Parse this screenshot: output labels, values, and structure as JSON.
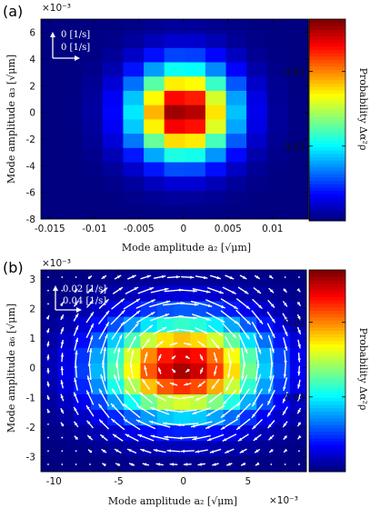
{
  "panel_a": {
    "label": "(a)",
    "exponent": "×10⁻³",
    "legend": [
      "0 [1/s]",
      "0 [1/s]"
    ],
    "colorbar_label": "Probability Δα²ρ",
    "chart_data": {
      "type": "heatmap",
      "xlabel": "Mode amplitude a₂ [√μm]",
      "ylabel": "Mode amplitude a₃ [√μm]",
      "colorbar_label": "Probability Δα²ρ",
      "xlim": [
        -0.016,
        0.014
      ],
      "ylim": [
        -8,
        7
      ],
      "y_scale_note": "×10⁻³",
      "x_ticks": [
        "-0.015",
        "-0.01",
        "-0.005",
        "0",
        "0.005",
        "0.01"
      ],
      "x_tick_values": [
        -0.015,
        -0.01,
        -0.005,
        0,
        0.005,
        0.01
      ],
      "y_ticks": [
        "-8",
        "-6",
        "-4",
        "-2",
        "0",
        "2",
        "4",
        "6"
      ],
      "y_tick_values": [
        -8,
        -6,
        -4,
        -2,
        0,
        2,
        4,
        6
      ],
      "colorbar_ticks": [
        "0.01",
        "0.02"
      ],
      "colorbar_tick_values": [
        0.01,
        0.02
      ],
      "colorbar_range": [
        0,
        0.027
      ],
      "nx": 13,
      "ny": 14,
      "sigma_x": 0.0039,
      "sigma_y": 2.4,
      "peak": 0.027,
      "x_center": 0,
      "y_center": 0
    }
  },
  "panel_b": {
    "label": "(b)",
    "exponent_y": "×10⁻³",
    "exponent_x": "×10⁻³",
    "legend": [
      "0.02 [1/s]",
      "0.04 [1/s]"
    ],
    "colorbar_label": "Probability Δα²ρ",
    "chart_data": {
      "type": "heatmap",
      "xlabel": "Mode amplitude a₂ [√μm]",
      "ylabel": "Mode amplitude a₆ [√μm]",
      "colorbar_label": "Probability Δα²ρ",
      "xlim": [
        -11,
        9.5
      ],
      "ylim": [
        -3.5,
        3.3
      ],
      "x_ticks": [
        "-10",
        "-5",
        "0",
        "5"
      ],
      "x_tick_values": [
        -10,
        -5,
        0,
        5
      ],
      "y_ticks": [
        "-3",
        "-2",
        "-1",
        "0",
        "1",
        "2",
        "3"
      ],
      "y_tick_values": [
        -3,
        -2,
        -1,
        0,
        1,
        2,
        3
      ],
      "colorbar_ticks": [
        "0.01",
        "0.02"
      ],
      "colorbar_tick_values": [
        0.01,
        0.02
      ],
      "colorbar_range": [
        0,
        0.027
      ],
      "nx": 16,
      "ny": 13,
      "sigma_x": 4.3,
      "sigma_y": 1.15,
      "peak": 0.026,
      "x_center": 0,
      "y_center": 0,
      "vector_field": "counter-clockwise circulation around origin"
    }
  }
}
